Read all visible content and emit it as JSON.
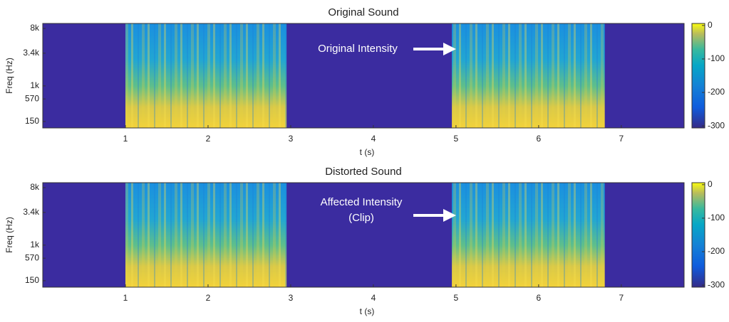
{
  "chart_data": [
    {
      "type": "spectrogram",
      "title": "Original Sound",
      "xlabel": "t (s)",
      "ylabel": "Freq (Hz)",
      "xlim": [
        0,
        7.76
      ],
      "xticks": [
        1,
        2,
        3,
        4,
        5,
        6,
        7
      ],
      "yscale": "erb",
      "ylim": [
        77,
        9480
      ],
      "yticks": [
        150,
        570,
        {
          "value": 1000,
          "label": "1k"
        },
        {
          "value": 3400,
          "label": "3.4k"
        },
        {
          "value": 8000,
          "label": "8k"
        }
      ],
      "segments": [
        [
          1,
          2.95
        ],
        [
          4.95,
          6.8
        ]
      ],
      "colorbar": {
        "lim": [
          -306,
          6
        ],
        "ticks": [
          0,
          -100,
          -200,
          -300
        ]
      },
      "annotation": [
        "Original Intensity"
      ]
    },
    {
      "type": "spectrogram",
      "title": "Distorted Sound",
      "xlabel": "t (s)",
      "ylabel": "Freq (Hz)",
      "xlim": [
        0,
        7.76
      ],
      "xticks": [
        1,
        2,
        3,
        4,
        5,
        6,
        7
      ],
      "yscale": "erb",
      "ylim": [
        77,
        9480
      ],
      "yticks": [
        150,
        570,
        {
          "value": 1000,
          "label": "1k"
        },
        {
          "value": 3400,
          "label": "3.4k"
        },
        {
          "value": 8000,
          "label": "8k"
        }
      ],
      "segments": [
        [
          1,
          2.95
        ],
        [
          4.95,
          6.8
        ]
      ],
      "colorbar": {
        "lim": [
          -306,
          6
        ],
        "ticks": [
          0,
          -100,
          -200,
          -300
        ]
      },
      "annotation": [
        "Affected Intensity",
        "(Clip)"
      ]
    }
  ]
}
